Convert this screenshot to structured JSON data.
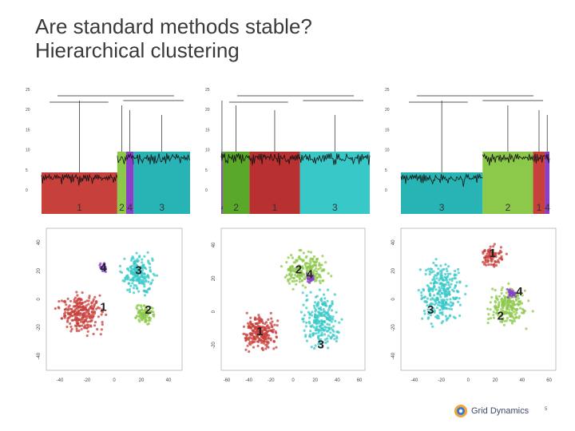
{
  "slide": {
    "title_line1": "Are standard methods stable?",
    "title_line2": "Hierarchical clustering",
    "page_number": "5"
  },
  "logo": {
    "text": "Grid Dynamics",
    "icon": "grid-dynamics-logo-icon"
  },
  "colors": {
    "red": "#c8403c",
    "green": "#8cc84a",
    "purple": "#8a3fc8",
    "teal": "#28b4b4",
    "dark_green": "#5aa82a",
    "cyan": "#38c8c8"
  },
  "dendrograms": [
    {
      "name": "dendrogram-1",
      "y_ticks": [
        "0",
        "5",
        "10",
        "15",
        "20",
        "25"
      ],
      "segments": [
        {
          "label": "1",
          "color": "#c8403c",
          "fraction": 0.51
        },
        {
          "label": "2",
          "color": "#8cc84a",
          "fraction": 0.06
        },
        {
          "label": "4",
          "color": "#8a3fc8",
          "fraction": 0.05
        },
        {
          "label": "3",
          "color": "#28b4b4",
          "fraction": 0.38
        }
      ]
    },
    {
      "name": "dendrogram-2",
      "y_ticks": [
        "0",
        "5",
        "10",
        "15",
        "20",
        "25"
      ],
      "segments": [
        {
          "label": "4",
          "color": "#8a3fc8",
          "fraction": 0.01
        },
        {
          "label": "2",
          "color": "#5aa82a",
          "fraction": 0.18
        },
        {
          "label": "1",
          "color": "#b83030",
          "fraction": 0.34
        },
        {
          "label": "3",
          "color": "#38c8c8",
          "fraction": 0.47
        }
      ]
    },
    {
      "name": "dendrogram-3",
      "y_ticks": [
        "0",
        "5",
        "10",
        "15",
        "20",
        "25"
      ],
      "segments": [
        {
          "label": "3",
          "color": "#28b4b4",
          "fraction": 0.55
        },
        {
          "label": "2",
          "color": "#8cc84a",
          "fraction": 0.34
        },
        {
          "label": "1",
          "color": "#c8403c",
          "fraction": 0.08
        },
        {
          "label": "4",
          "color": "#8a3fc8",
          "fraction": 0.03
        }
      ]
    }
  ],
  "scatters": [
    {
      "name": "tsne-1",
      "x_ticks": [
        "-40",
        "-20",
        "0",
        "20",
        "40"
      ],
      "y_ticks": [
        "40",
        "20",
        "0",
        "-20",
        "-40"
      ],
      "xlim": [
        -50,
        50
      ],
      "ylim": [
        -50,
        50
      ],
      "clusters": [
        {
          "label": "1",
          "color": "#c8403c",
          "cx": -25,
          "cy": -10,
          "rx": 22,
          "ry": 18,
          "n": 260
        },
        {
          "label": "2",
          "color": "#8cc84a",
          "cx": 22,
          "cy": -10,
          "rx": 10,
          "ry": 9,
          "n": 90
        },
        {
          "label": "3",
          "color": "#38c8c8",
          "cx": 18,
          "cy": 18,
          "rx": 16,
          "ry": 18,
          "n": 200
        },
        {
          "label": "4",
          "color": "#8a3fc8",
          "cx": -8,
          "cy": 22,
          "rx": 4,
          "ry": 4,
          "n": 30
        }
      ],
      "label_positions": [
        {
          "label": "1",
          "x": -8,
          "y": -6
        },
        {
          "label": "2",
          "x": 25,
          "y": -8
        },
        {
          "label": "3",
          "x": 18,
          "y": 20
        },
        {
          "label": "4",
          "x": -8,
          "y": 22
        }
      ]
    },
    {
      "name": "tsne-2",
      "x_ticks": [
        "-60",
        "-40",
        "-20",
        "0",
        "20",
        "40",
        "60"
      ],
      "y_ticks": [
        "40",
        "20",
        "0",
        "-20"
      ],
      "xlim": [
        -65,
        65
      ],
      "ylim": [
        -35,
        50
      ],
      "clusters": [
        {
          "label": "1",
          "color": "#c8403c",
          "cx": -30,
          "cy": -12,
          "rx": 20,
          "ry": 14,
          "n": 240
        },
        {
          "label": "2",
          "color": "#8cc84a",
          "cx": 12,
          "cy": 25,
          "rx": 28,
          "ry": 14,
          "n": 200
        },
        {
          "label": "3",
          "color": "#38c8c8",
          "cx": 25,
          "cy": -5,
          "rx": 22,
          "ry": 22,
          "n": 230
        },
        {
          "label": "4",
          "color": "#8a3fc8",
          "cx": 15,
          "cy": 20,
          "rx": 6,
          "ry": 4,
          "n": 20
        }
      ],
      "label_positions": [
        {
          "label": "1",
          "x": -30,
          "y": -12
        },
        {
          "label": "2",
          "x": 5,
          "y": 25
        },
        {
          "label": "4",
          "x": 15,
          "y": 22
        },
        {
          "label": "3",
          "x": 25,
          "y": -20
        }
      ]
    },
    {
      "name": "tsne-3",
      "x_ticks": [
        "-40",
        "-20",
        "0",
        "20",
        "40",
        "60"
      ],
      "y_ticks": [
        "40",
        "20",
        "0",
        "-20",
        "-40"
      ],
      "xlim": [
        -50,
        65
      ],
      "ylim": [
        -50,
        50
      ],
      "clusters": [
        {
          "label": "3",
          "color": "#38c8c8",
          "cx": -20,
          "cy": 5,
          "rx": 22,
          "ry": 30,
          "n": 280
        },
        {
          "label": "1",
          "color": "#c8403c",
          "cx": 18,
          "cy": 30,
          "rx": 12,
          "ry": 10,
          "n": 90
        },
        {
          "label": "2",
          "color": "#8cc84a",
          "cx": 30,
          "cy": -5,
          "rx": 20,
          "ry": 18,
          "n": 200
        },
        {
          "label": "4",
          "color": "#8a3fc8",
          "cx": 32,
          "cy": 4,
          "rx": 5,
          "ry": 4,
          "n": 25
        }
      ],
      "label_positions": [
        {
          "label": "1",
          "x": 18,
          "y": 32
        },
        {
          "label": "3",
          "x": -28,
          "y": -8
        },
        {
          "label": "4",
          "x": 38,
          "y": 5
        },
        {
          "label": "2",
          "x": 24,
          "y": -12
        }
      ]
    }
  ]
}
